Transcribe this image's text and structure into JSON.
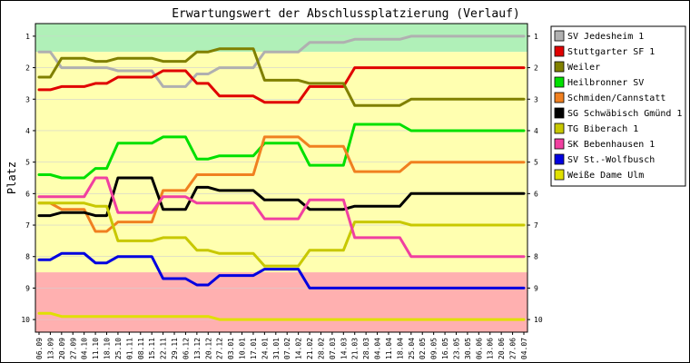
{
  "chart_data": {
    "type": "line",
    "title": "Erwartungswert der Abschlussplatzierung (Verlauf)",
    "xlabel": "",
    "ylabel": "Platz",
    "ylim": [
      10.4,
      0.6
    ],
    "y_ticks": [
      1,
      2,
      3,
      4,
      5,
      6,
      7,
      8,
      9,
      10
    ],
    "grid": true,
    "legend_position": "right",
    "zones": [
      {
        "from": 0.6,
        "to": 1.5,
        "color": "#b0f0b8"
      },
      {
        "from": 1.5,
        "to": 8.5,
        "color": "#ffffb0"
      },
      {
        "from": 8.5,
        "to": 10.4,
        "color": "#ffb0b0"
      }
    ],
    "categories": [
      "06.09",
      "13.09",
      "20.09",
      "27.09",
      "04.10",
      "11.10",
      "18.10",
      "25.10",
      "01.11",
      "08.11",
      "15.11",
      "22.11",
      "29.11",
      "06.12",
      "13.12",
      "20.12",
      "27.12",
      "03.01",
      "10.01",
      "17.01",
      "24.01",
      "31.01",
      "07.02",
      "14.02",
      "21.02",
      "28.02",
      "07.03",
      "14.03",
      "21.03",
      "28.03",
      "04.04",
      "11.04",
      "18.04",
      "25.04",
      "02.05",
      "09.05",
      "16.05",
      "23.05",
      "30.05",
      "06.06",
      "13.06",
      "20.06",
      "27.06",
      "04.07"
    ],
    "series": [
      {
        "name": "SV Jedesheim 1",
        "color": "#b0b0b0",
        "values": [
          1.5,
          1.5,
          2.0,
          2.0,
          2.0,
          2.0,
          2.0,
          2.1,
          2.1,
          2.1,
          2.1,
          2.6,
          2.6,
          2.6,
          2.2,
          2.2,
          2.0,
          2.0,
          2.0,
          2.0,
          1.5,
          1.5,
          1.5,
          1.5,
          1.2,
          1.2,
          1.2,
          1.2,
          1.1,
          1.1,
          1.1,
          1.1,
          1.1,
          1.0,
          1.0,
          1.0,
          1.0,
          1.0,
          1.0,
          1.0,
          1.0,
          1.0,
          1.0,
          1.0
        ]
      },
      {
        "name": "Stuttgarter SF 1",
        "color": "#e00000",
        "values": [
          2.7,
          2.7,
          2.6,
          2.6,
          2.6,
          2.5,
          2.5,
          2.3,
          2.3,
          2.3,
          2.3,
          2.1,
          2.1,
          2.1,
          2.5,
          2.5,
          2.9,
          2.9,
          2.9,
          2.9,
          3.1,
          3.1,
          3.1,
          3.1,
          2.6,
          2.6,
          2.6,
          2.6,
          2.0,
          2.0,
          2.0,
          2.0,
          2.0,
          2.0,
          2.0,
          2.0,
          2.0,
          2.0,
          2.0,
          2.0,
          2.0,
          2.0,
          2.0,
          2.0
        ]
      },
      {
        "name": "Weiler",
        "color": "#808000",
        "values": [
          2.3,
          2.3,
          1.7,
          1.7,
          1.7,
          1.8,
          1.8,
          1.7,
          1.7,
          1.7,
          1.7,
          1.8,
          1.8,
          1.8,
          1.5,
          1.5,
          1.4,
          1.4,
          1.4,
          1.4,
          2.4,
          2.4,
          2.4,
          2.4,
          2.5,
          2.5,
          2.5,
          2.5,
          3.2,
          3.2,
          3.2,
          3.2,
          3.2,
          3.0,
          3.0,
          3.0,
          3.0,
          3.0,
          3.0,
          3.0,
          3.0,
          3.0,
          3.0,
          3.0
        ]
      },
      {
        "name": "Heilbronner SV",
        "color": "#00e000",
        "values": [
          5.4,
          5.4,
          5.5,
          5.5,
          5.5,
          5.2,
          5.2,
          4.4,
          4.4,
          4.4,
          4.4,
          4.2,
          4.2,
          4.2,
          4.9,
          4.9,
          4.8,
          4.8,
          4.8,
          4.8,
          4.4,
          4.4,
          4.4,
          4.4,
          5.1,
          5.1,
          5.1,
          5.1,
          3.8,
          3.8,
          3.8,
          3.8,
          3.8,
          4.0,
          4.0,
          4.0,
          4.0,
          4.0,
          4.0,
          4.0,
          4.0,
          4.0,
          4.0,
          4.0
        ]
      },
      {
        "name": "Schmiden/Cannstatt",
        "color": "#f08020",
        "values": [
          6.3,
          6.3,
          6.5,
          6.5,
          6.5,
          7.2,
          7.2,
          6.9,
          6.9,
          6.9,
          6.9,
          5.9,
          5.9,
          5.9,
          5.4,
          5.4,
          5.4,
          5.4,
          5.4,
          5.4,
          4.2,
          4.2,
          4.2,
          4.2,
          4.5,
          4.5,
          4.5,
          4.5,
          5.3,
          5.3,
          5.3,
          5.3,
          5.3,
          5.0,
          5.0,
          5.0,
          5.0,
          5.0,
          5.0,
          5.0,
          5.0,
          5.0,
          5.0,
          5.0
        ]
      },
      {
        "name": "SG Schwäbisch Gmünd 1",
        "color": "#000000",
        "values": [
          6.7,
          6.7,
          6.6,
          6.6,
          6.6,
          6.7,
          6.7,
          5.5,
          5.5,
          5.5,
          5.5,
          6.5,
          6.5,
          6.5,
          5.8,
          5.8,
          5.9,
          5.9,
          5.9,
          5.9,
          6.2,
          6.2,
          6.2,
          6.2,
          6.5,
          6.5,
          6.5,
          6.5,
          6.4,
          6.4,
          6.4,
          6.4,
          6.4,
          6.0,
          6.0,
          6.0,
          6.0,
          6.0,
          6.0,
          6.0,
          6.0,
          6.0,
          6.0,
          6.0
        ]
      },
      {
        "name": "TG Biberach 1",
        "color": "#c8c800",
        "values": [
          6.3,
          6.3,
          6.3,
          6.3,
          6.3,
          6.4,
          6.4,
          7.5,
          7.5,
          7.5,
          7.5,
          7.4,
          7.4,
          7.4,
          7.8,
          7.8,
          7.9,
          7.9,
          7.9,
          7.9,
          8.3,
          8.3,
          8.3,
          8.3,
          7.8,
          7.8,
          7.8,
          7.8,
          6.9,
          6.9,
          6.9,
          6.9,
          6.9,
          7.0,
          7.0,
          7.0,
          7.0,
          7.0,
          7.0,
          7.0,
          7.0,
          7.0,
          7.0,
          7.0
        ]
      },
      {
        "name": "SK Bebenhausen 1",
        "color": "#f040a0",
        "values": [
          6.1,
          6.1,
          6.1,
          6.1,
          6.1,
          5.5,
          5.5,
          6.6,
          6.6,
          6.6,
          6.6,
          6.1,
          6.1,
          6.1,
          6.3,
          6.3,
          6.3,
          6.3,
          6.3,
          6.3,
          6.8,
          6.8,
          6.8,
          6.8,
          6.2,
          6.2,
          6.2,
          6.2,
          7.4,
          7.4,
          7.4,
          7.4,
          7.4,
          8.0,
          8.0,
          8.0,
          8.0,
          8.0,
          8.0,
          8.0,
          8.0,
          8.0,
          8.0,
          8.0
        ]
      },
      {
        "name": "SV St.-Wolfbusch",
        "color": "#0000e0",
        "values": [
          8.1,
          8.1,
          7.9,
          7.9,
          7.9,
          8.2,
          8.2,
          8.0,
          8.0,
          8.0,
          8.0,
          8.7,
          8.7,
          8.7,
          8.9,
          8.9,
          8.6,
          8.6,
          8.6,
          8.6,
          8.4,
          8.4,
          8.4,
          8.4,
          9.0,
          9.0,
          9.0,
          9.0,
          9.0,
          9.0,
          9.0,
          9.0,
          9.0,
          9.0,
          9.0,
          9.0,
          9.0,
          9.0,
          9.0,
          9.0,
          9.0,
          9.0,
          9.0,
          9.0
        ]
      },
      {
        "name": "Weiße Dame Ulm",
        "color": "#e0e000",
        "values": [
          9.8,
          9.8,
          9.9,
          9.9,
          9.9,
          9.9,
          9.9,
          9.9,
          9.9,
          9.9,
          9.9,
          9.9,
          9.9,
          9.9,
          9.9,
          9.9,
          10.0,
          10.0,
          10.0,
          10.0,
          10.0,
          10.0,
          10.0,
          10.0,
          10.0,
          10.0,
          10.0,
          10.0,
          10.0,
          10.0,
          10.0,
          10.0,
          10.0,
          10.0,
          10.0,
          10.0,
          10.0,
          10.0,
          10.0,
          10.0,
          10.0,
          10.0,
          10.0,
          10.0
        ]
      }
    ]
  }
}
